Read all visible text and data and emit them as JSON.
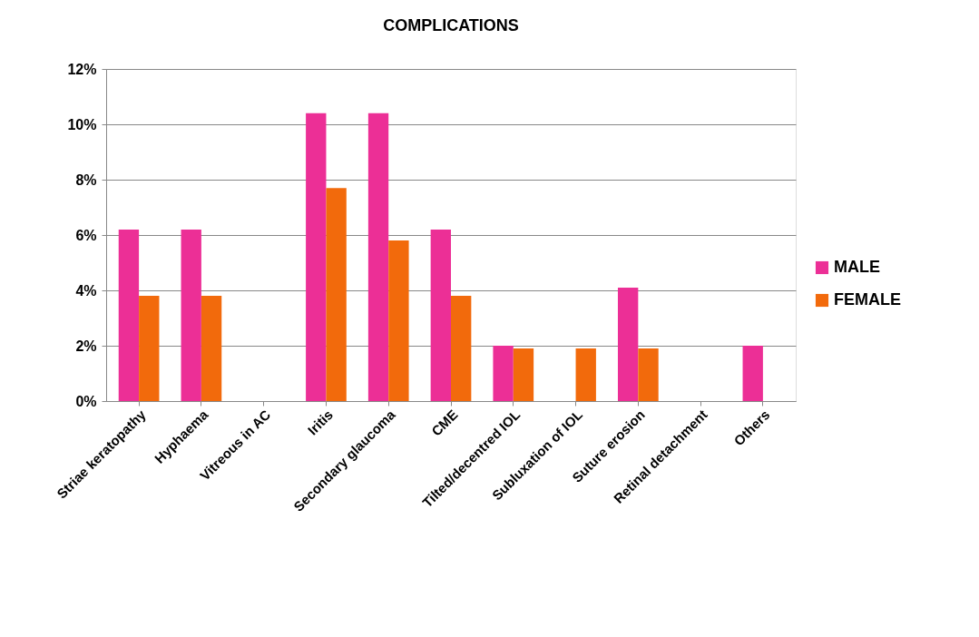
{
  "chart_data": {
    "type": "bar",
    "title": "COMPLICATIONS",
    "categories": [
      "Striae keratopathy",
      "Hyphaema",
      "Vitreous in AC",
      "Iritis",
      "Secondary glaucoma",
      "CME",
      "Tilted/decentred IOL",
      "Subluxation of IOL",
      "Suture erosion",
      "Retinal detachment",
      "Others"
    ],
    "series": [
      {
        "name": "MALE",
        "color": "#ec2f96",
        "values": [
          6.2,
          6.2,
          0,
          10.4,
          10.4,
          6.2,
          2.0,
          0,
          4.1,
          0,
          2.0
        ]
      },
      {
        "name": "FEMALE",
        "color": "#f26a0c",
        "values": [
          3.8,
          3.8,
          0,
          7.7,
          5.8,
          3.8,
          1.9,
          1.9,
          1.9,
          0,
          0
        ]
      }
    ],
    "ylim": [
      0,
      12
    ],
    "yticks": [
      {
        "value": 0,
        "label": "0%"
      },
      {
        "value": 2,
        "label": "2%"
      },
      {
        "value": 4,
        "label": "4%"
      },
      {
        "value": 6,
        "label": "6%"
      },
      {
        "value": 8,
        "label": "8%"
      },
      {
        "value": 10,
        "label": "10%"
      },
      {
        "value": 12,
        "label": "12%"
      }
    ],
    "grid": "y",
    "legend": "right"
  }
}
